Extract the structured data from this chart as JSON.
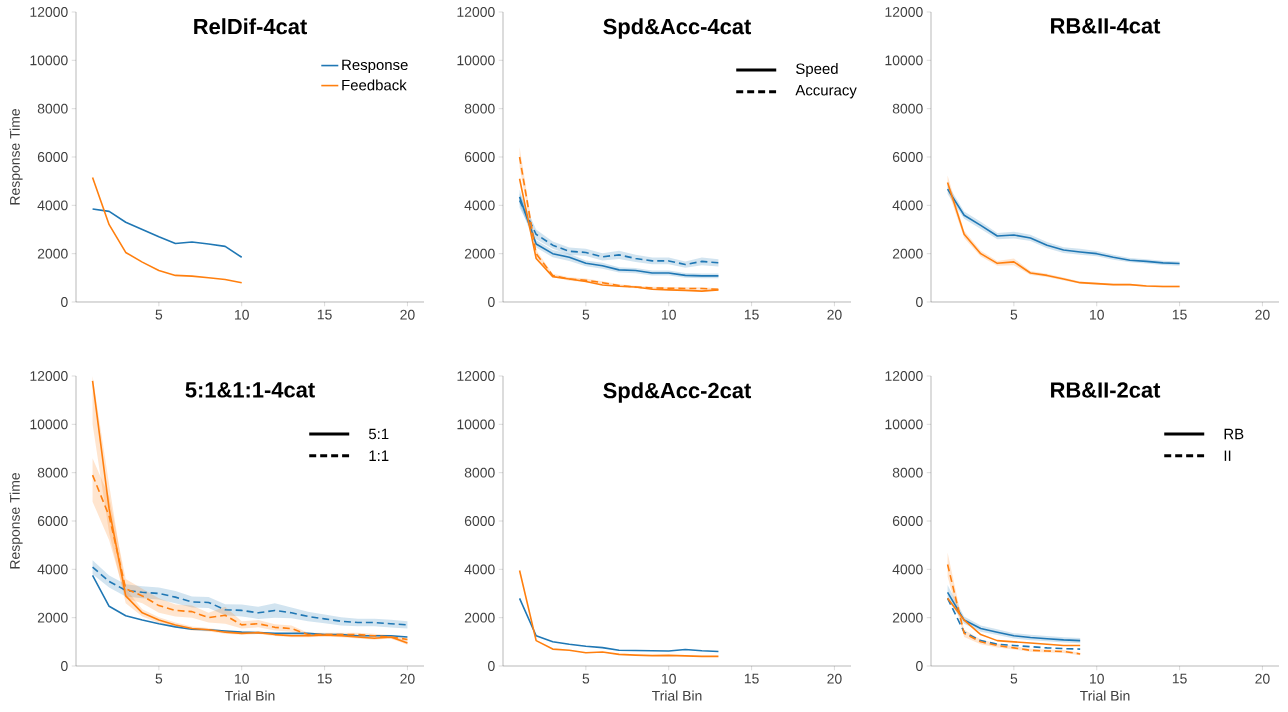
{
  "chart_data": [
    {
      "type": "line",
      "title": "RelDif-4cat",
      "ylabel": "Response Time",
      "x": [
        1,
        2,
        3,
        4,
        5,
        6,
        7,
        8,
        9,
        10
      ],
      "xlim": [
        0,
        21
      ],
      "ylim": [
        0,
        12000
      ],
      "xticks": [
        5,
        10,
        15,
        20
      ],
      "yticks": [
        0,
        2000,
        4000,
        6000,
        8000,
        10000,
        12000
      ],
      "legend": "top right",
      "series": [
        {
          "name": "Response",
          "color": "#1f77b4",
          "line_style": "solid",
          "values": [
            3850,
            3750,
            3300,
            3000,
            2700,
            2420,
            2480,
            2400,
            2300,
            1850
          ]
        },
        {
          "name": "Feedback",
          "color": "#ff7f0e",
          "line_style": "solid",
          "values": [
            5150,
            3200,
            2050,
            1650,
            1300,
            1100,
            1070,
            1000,
            930,
            800
          ]
        }
      ]
    },
    {
      "type": "line",
      "title": "Spd&Acc-4cat",
      "x": [
        1,
        2,
        3,
        4,
        5,
        6,
        7,
        8,
        9,
        10,
        11,
        12,
        13
      ],
      "xlim": [
        0,
        21
      ],
      "ylim": [
        0,
        12000
      ],
      "xticks": [
        5,
        10,
        15,
        20
      ],
      "yticks": [
        0,
        2000,
        4000,
        6000,
        8000,
        10000,
        12000
      ],
      "annotations": [
        "Speed",
        "Accuracy"
      ],
      "series": [
        {
          "color": "#1f77b4",
          "line_style": "solid",
          "values": [
            4350,
            2400,
            2000,
            1850,
            1600,
            1500,
            1330,
            1300,
            1200,
            1200,
            1100,
            1080,
            1080
          ],
          "lower": [
            4050,
            2250,
            1850,
            1700,
            1480,
            1380,
            1220,
            1190,
            1100,
            1100,
            1000,
            980,
            980
          ],
          "upper": [
            4650,
            2550,
            2150,
            2000,
            1720,
            1620,
            1440,
            1410,
            1300,
            1300,
            1200,
            1180,
            1180
          ]
        },
        {
          "color": "#1f77b4",
          "line_style": "dashed",
          "values": [
            4200,
            2800,
            2350,
            2100,
            2050,
            1870,
            1950,
            1800,
            1700,
            1700,
            1550,
            1680,
            1620
          ],
          "lower": [
            3900,
            2600,
            2200,
            1950,
            1900,
            1720,
            1780,
            1650,
            1560,
            1560,
            1420,
            1520,
            1470
          ],
          "upper": [
            4500,
            3000,
            2500,
            2250,
            2200,
            2020,
            2120,
            1950,
            1840,
            1840,
            1680,
            1840,
            1770
          ]
        },
        {
          "color": "#ff7f0e",
          "line_style": "solid",
          "values": [
            5100,
            1800,
            1050,
            950,
            850,
            700,
            650,
            620,
            530,
            500,
            480,
            450,
            500
          ]
        },
        {
          "color": "#ff7f0e",
          "line_style": "dashed",
          "values": [
            6000,
            2000,
            1100,
            950,
            900,
            800,
            680,
            620,
            580,
            570,
            560,
            560,
            520
          ],
          "lower": [
            5600,
            1850,
            1030,
            880,
            830,
            740,
            630,
            570,
            530,
            520,
            510,
            510,
            470
          ],
          "upper": [
            6400,
            2150,
            1170,
            1020,
            970,
            860,
            730,
            670,
            630,
            620,
            610,
            610,
            570
          ]
        }
      ]
    },
    {
      "type": "line",
      "title": "RB&II-4cat",
      "x": [
        1,
        2,
        3,
        4,
        5,
        6,
        7,
        8,
        9,
        10,
        11,
        12,
        13,
        14,
        15
      ],
      "xlim": [
        0,
        21
      ],
      "ylim": [
        0,
        12000
      ],
      "xticks": [
        5,
        10,
        15,
        20
      ],
      "yticks": [
        0,
        2000,
        4000,
        6000,
        8000,
        10000,
        12000
      ],
      "series": [
        {
          "color": "#1f77b4",
          "line_style": "solid",
          "values": [
            4670,
            3590,
            3170,
            2730,
            2770,
            2650,
            2350,
            2150,
            2070,
            2000,
            1850,
            1730,
            1680,
            1620,
            1590
          ],
          "lower": [
            4470,
            3440,
            3020,
            2600,
            2630,
            2520,
            2220,
            2030,
            1950,
            1890,
            1750,
            1640,
            1590,
            1530,
            1500
          ],
          "upper": [
            4870,
            3740,
            3320,
            2860,
            2910,
            2780,
            2480,
            2270,
            2200,
            2110,
            1950,
            1820,
            1770,
            1710,
            1680
          ]
        },
        {
          "color": "#ff7f0e",
          "line_style": "solid",
          "values": [
            4940,
            2800,
            2000,
            1600,
            1660,
            1200,
            1100,
            950,
            800,
            760,
            720,
            720,
            660,
            640,
            640
          ],
          "lower": [
            4650,
            2650,
            1880,
            1500,
            1520,
            1120,
            1030,
            890,
            750,
            710,
            680,
            680,
            620,
            600,
            600
          ],
          "upper": [
            5230,
            2950,
            2120,
            1700,
            1800,
            1280,
            1170,
            1010,
            850,
            810,
            760,
            760,
            700,
            680,
            680
          ]
        }
      ]
    },
    {
      "type": "line",
      "title": "5:1&1:1-4cat",
      "xlabel": "Trial Bin",
      "ylabel": "Response Time",
      "x": [
        1,
        2,
        3,
        4,
        5,
        6,
        7,
        8,
        9,
        10,
        11,
        12,
        13,
        14,
        15,
        16,
        17,
        18,
        19,
        20
      ],
      "xlim": [
        0,
        21
      ],
      "ylim": [
        0,
        12000
      ],
      "xticks": [
        5,
        10,
        15,
        20
      ],
      "yticks": [
        0,
        2000,
        4000,
        6000,
        8000,
        10000,
        12000
      ],
      "annotations": [
        "5:1",
        "1:1"
      ],
      "series": [
        {
          "color": "#1f77b4",
          "line_style": "solid",
          "values": [
            3750,
            2470,
            2080,
            1900,
            1750,
            1620,
            1520,
            1500,
            1450,
            1400,
            1380,
            1350,
            1350,
            1350,
            1300,
            1300,
            1250,
            1250,
            1250,
            1200
          ]
        },
        {
          "color": "#1f77b4",
          "line_style": "dashed",
          "values": [
            4090,
            3500,
            3130,
            3050,
            3000,
            2850,
            2650,
            2630,
            2330,
            2300,
            2200,
            2300,
            2200,
            2050,
            1950,
            1850,
            1800,
            1800,
            1750,
            1700
          ],
          "lower": [
            3800,
            3250,
            2880,
            2800,
            2750,
            2600,
            2420,
            2400,
            2100,
            2050,
            1950,
            2000,
            1980,
            1850,
            1770,
            1680,
            1640,
            1640,
            1590,
            1550
          ],
          "upper": [
            4380,
            3750,
            3380,
            3300,
            3250,
            3100,
            2880,
            2860,
            2560,
            2550,
            2450,
            2600,
            2420,
            2250,
            2130,
            2020,
            1960,
            1960,
            1910,
            1850
          ]
        },
        {
          "color": "#ff7f0e",
          "line_style": "solid",
          "values": [
            11800,
            6500,
            2900,
            2200,
            1900,
            1700,
            1550,
            1500,
            1400,
            1350,
            1380,
            1300,
            1250,
            1250,
            1280,
            1250,
            1200,
            1150,
            1200,
            950
          ],
          "lower": [
            10000,
            5500,
            2600,
            2050,
            1780,
            1600,
            1470,
            1430,
            1330,
            1290,
            1320,
            1240,
            1190,
            1190,
            1220,
            1190,
            1140,
            1090,
            1140,
            880
          ],
          "upper": [
            12000,
            7500,
            3200,
            2350,
            2020,
            1800,
            1630,
            1570,
            1470,
            1410,
            1440,
            1360,
            1310,
            1310,
            1340,
            1310,
            1260,
            1210,
            1260,
            1020
          ]
        },
        {
          "color": "#ff7f0e",
          "line_style": "dashed",
          "values": [
            7900,
            6200,
            3200,
            2900,
            2500,
            2300,
            2250,
            2000,
            2100,
            1700,
            1750,
            1600,
            1550,
            1300,
            1300,
            1300,
            1300,
            1250,
            1200,
            1100
          ],
          "lower": [
            6800,
            5200,
            2800,
            2600,
            2200,
            2050,
            2000,
            1800,
            1750,
            1550,
            1600,
            1470,
            1420,
            1220,
            1220,
            1220,
            1220,
            1170,
            1120,
            1020
          ],
          "upper": [
            8600,
            7000,
            3600,
            3200,
            2800,
            2550,
            2500,
            2200,
            2450,
            1850,
            1900,
            1730,
            1680,
            1380,
            1380,
            1380,
            1380,
            1330,
            1280,
            1180
          ]
        }
      ]
    },
    {
      "type": "line",
      "title": "Spd&Acc-2cat",
      "xlabel": "Trial Bin",
      "x": [
        1,
        2,
        3,
        4,
        5,
        6,
        7,
        8,
        9,
        10,
        11,
        12,
        13
      ],
      "xlim": [
        0,
        21
      ],
      "ylim": [
        0,
        12000
      ],
      "xticks": [
        5,
        10,
        15,
        20
      ],
      "yticks": [
        0,
        2000,
        4000,
        6000,
        8000,
        10000,
        12000
      ],
      "series": [
        {
          "color": "#1f77b4",
          "line_style": "solid",
          "values": [
            2800,
            1250,
            1000,
            900,
            820,
            760,
            650,
            640,
            630,
            620,
            680,
            630,
            600
          ]
        },
        {
          "color": "#ff7f0e",
          "line_style": "solid",
          "values": [
            3950,
            1050,
            700,
            650,
            550,
            580,
            480,
            450,
            430,
            440,
            420,
            400,
            400
          ]
        }
      ]
    },
    {
      "type": "line",
      "title": "RB&II-2cat",
      "xlabel": "Trial Bin",
      "x": [
        1,
        2,
        3,
        4,
        5,
        6,
        7,
        8,
        9
      ],
      "xlim": [
        0,
        21
      ],
      "ylim": [
        0,
        12000
      ],
      "xticks": [
        5,
        10,
        15,
        20
      ],
      "yticks": [
        0,
        2000,
        4000,
        6000,
        8000,
        10000,
        12000
      ],
      "annotations": [
        "RB",
        "II"
      ],
      "series": [
        {
          "color": "#1f77b4",
          "line_style": "solid",
          "values": [
            3050,
            1900,
            1550,
            1400,
            1250,
            1180,
            1130,
            1080,
            1050
          ],
          "lower": [
            2750,
            1750,
            1420,
            1280,
            1140,
            1070,
            1020,
            970,
            940
          ],
          "upper": [
            3350,
            2050,
            1680,
            1520,
            1360,
            1290,
            1240,
            1190,
            1160
          ]
        },
        {
          "color": "#1f77b4",
          "line_style": "dashed",
          "values": [
            2800,
            1400,
            1050,
            900,
            850,
            800,
            750,
            720,
            700
          ]
        },
        {
          "color": "#ff7f0e",
          "line_style": "solid",
          "values": [
            2800,
            1900,
            1300,
            1050,
            1000,
            950,
            900,
            850,
            850
          ]
        },
        {
          "color": "#ff7f0e",
          "line_style": "dashed",
          "values": [
            4200,
            1350,
            1000,
            850,
            750,
            650,
            620,
            600,
            500
          ],
          "lower": [
            3700,
            1200,
            900,
            770,
            680,
            590,
            560,
            540,
            450
          ],
          "upper": [
            4700,
            1500,
            1100,
            930,
            820,
            710,
            680,
            660,
            550
          ]
        }
      ]
    }
  ]
}
